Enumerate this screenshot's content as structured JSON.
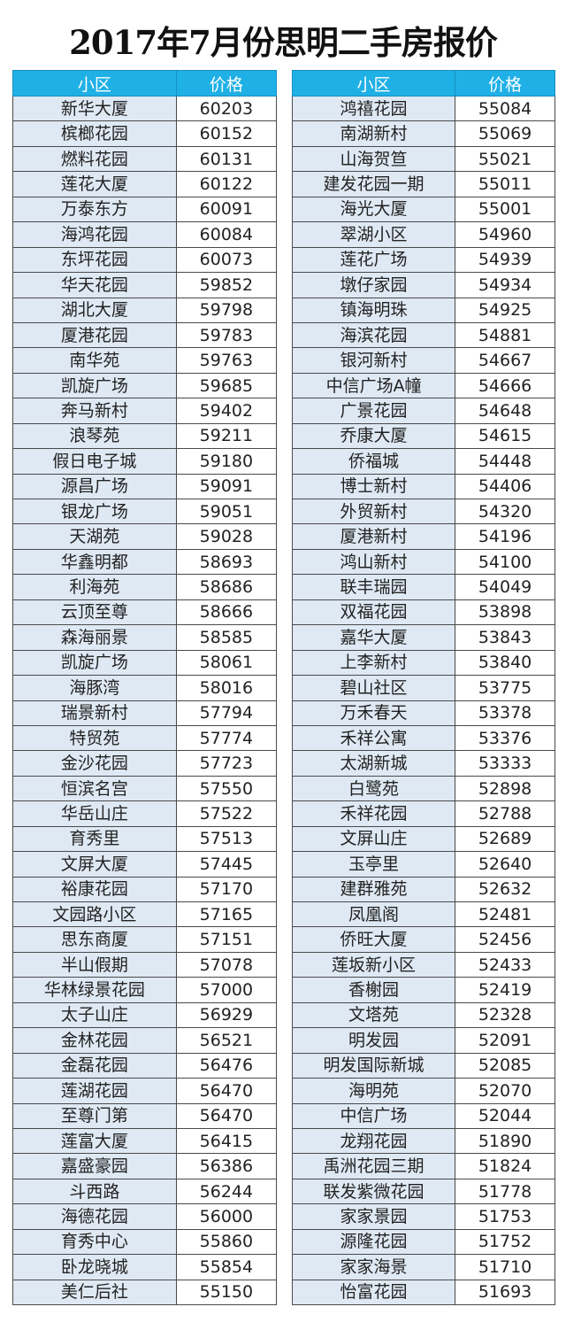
{
  "title": "2017年7月份思明二手房报价",
  "colors": {
    "header_bg": "#1fb0e6",
    "name_cell_bg": "#dfe9f4"
  },
  "headers": {
    "name": "小区",
    "price": "价格"
  },
  "left_table": [
    [
      "新华大厦",
      "60203"
    ],
    [
      "槟榔花园",
      "60152"
    ],
    [
      "燃料花园",
      "60131"
    ],
    [
      "莲花大厦",
      "60122"
    ],
    [
      "万泰东方",
      "60091"
    ],
    [
      "海鸿花园",
      "60084"
    ],
    [
      "东坪花园",
      "60073"
    ],
    [
      "华天花园",
      "59852"
    ],
    [
      "湖北大厦",
      "59798"
    ],
    [
      "厦港花园",
      "59783"
    ],
    [
      "南华苑",
      "59763"
    ],
    [
      "凯旋广场",
      "59685"
    ],
    [
      "奔马新村",
      "59402"
    ],
    [
      "浪琴苑",
      "59211"
    ],
    [
      "假日电子城",
      "59180"
    ],
    [
      "源昌广场",
      "59091"
    ],
    [
      "银龙广场",
      "59051"
    ],
    [
      "天湖苑",
      "59028"
    ],
    [
      "华鑫明都",
      "58693"
    ],
    [
      "利海苑",
      "58686"
    ],
    [
      "云顶至尊",
      "58666"
    ],
    [
      "森海丽景",
      "58585"
    ],
    [
      "凯旋广场",
      "58061"
    ],
    [
      "海豚湾",
      "58016"
    ],
    [
      "瑞景新村",
      "57794"
    ],
    [
      "特贸苑",
      "57774"
    ],
    [
      "金沙花园",
      "57723"
    ],
    [
      "恒滨名宫",
      "57550"
    ],
    [
      "华岳山庄",
      "57522"
    ],
    [
      "育秀里",
      "57513"
    ],
    [
      "文屏大厦",
      "57445"
    ],
    [
      "裕康花园",
      "57170"
    ],
    [
      "文园路小区",
      "57165"
    ],
    [
      "思东商厦",
      "57151"
    ],
    [
      "半山假期",
      "57078"
    ],
    [
      "华林绿景花园",
      "57000"
    ],
    [
      "太子山庄",
      "56929"
    ],
    [
      "金林花园",
      "56521"
    ],
    [
      "金磊花园",
      "56476"
    ],
    [
      "莲湖花园",
      "56470"
    ],
    [
      "至尊门第",
      "56470"
    ],
    [
      "莲富大厦",
      "56415"
    ],
    [
      "嘉盛豪园",
      "56386"
    ],
    [
      "斗西路",
      "56244"
    ],
    [
      "海德花园",
      "56000"
    ],
    [
      "育秀中心",
      "55860"
    ],
    [
      "卧龙晓城",
      "55854"
    ],
    [
      "美仁后社",
      "55150"
    ]
  ],
  "right_table": [
    [
      "鸿禧花园",
      "55084"
    ],
    [
      "南湖新村",
      "55069"
    ],
    [
      "山海贺笪",
      "55021"
    ],
    [
      "建发花园一期",
      "55011"
    ],
    [
      "海光大厦",
      "55001"
    ],
    [
      "翠湖小区",
      "54960"
    ],
    [
      "莲花广场",
      "54939"
    ],
    [
      "墩仔家园",
      "54934"
    ],
    [
      "镇海明珠",
      "54925"
    ],
    [
      "海滨花园",
      "54881"
    ],
    [
      "银河新村",
      "54667"
    ],
    [
      "中信广场A幢",
      "54666"
    ],
    [
      "广景花园",
      "54648"
    ],
    [
      "乔康大厦",
      "54615"
    ],
    [
      "侨福城",
      "54448"
    ],
    [
      "博士新村",
      "54406"
    ],
    [
      "外贸新村",
      "54320"
    ],
    [
      "厦港新村",
      "54196"
    ],
    [
      "鸿山新村",
      "54100"
    ],
    [
      "联丰瑞园",
      "54049"
    ],
    [
      "双福花园",
      "53898"
    ],
    [
      "嘉华大厦",
      "53843"
    ],
    [
      "上李新村",
      "53840"
    ],
    [
      "碧山社区",
      "53775"
    ],
    [
      "万禾春天",
      "53378"
    ],
    [
      "禾祥公寓",
      "53376"
    ],
    [
      "太湖新城",
      "53333"
    ],
    [
      "白鹭苑",
      "52898"
    ],
    [
      "禾祥花园",
      "52788"
    ],
    [
      "文屏山庄",
      "52689"
    ],
    [
      "玉亭里",
      "52640"
    ],
    [
      "建群雅苑",
      "52632"
    ],
    [
      "凤凰阁",
      "52481"
    ],
    [
      "侨旺大厦",
      "52456"
    ],
    [
      "莲坂新小区",
      "52433"
    ],
    [
      "香榭园",
      "52419"
    ],
    [
      "文塔苑",
      "52328"
    ],
    [
      "明发园",
      "52091"
    ],
    [
      "明发国际新城",
      "52085"
    ],
    [
      "海明苑",
      "52070"
    ],
    [
      "中信广场",
      "52044"
    ],
    [
      "龙翔花园",
      "51890"
    ],
    [
      "禹洲花园三期",
      "51824"
    ],
    [
      "联发紫微花园",
      "51778"
    ],
    [
      "家家景园",
      "51753"
    ],
    [
      "源隆花园",
      "51752"
    ],
    [
      "家家海景",
      "51710"
    ],
    [
      "怡富花园",
      "51693"
    ]
  ]
}
